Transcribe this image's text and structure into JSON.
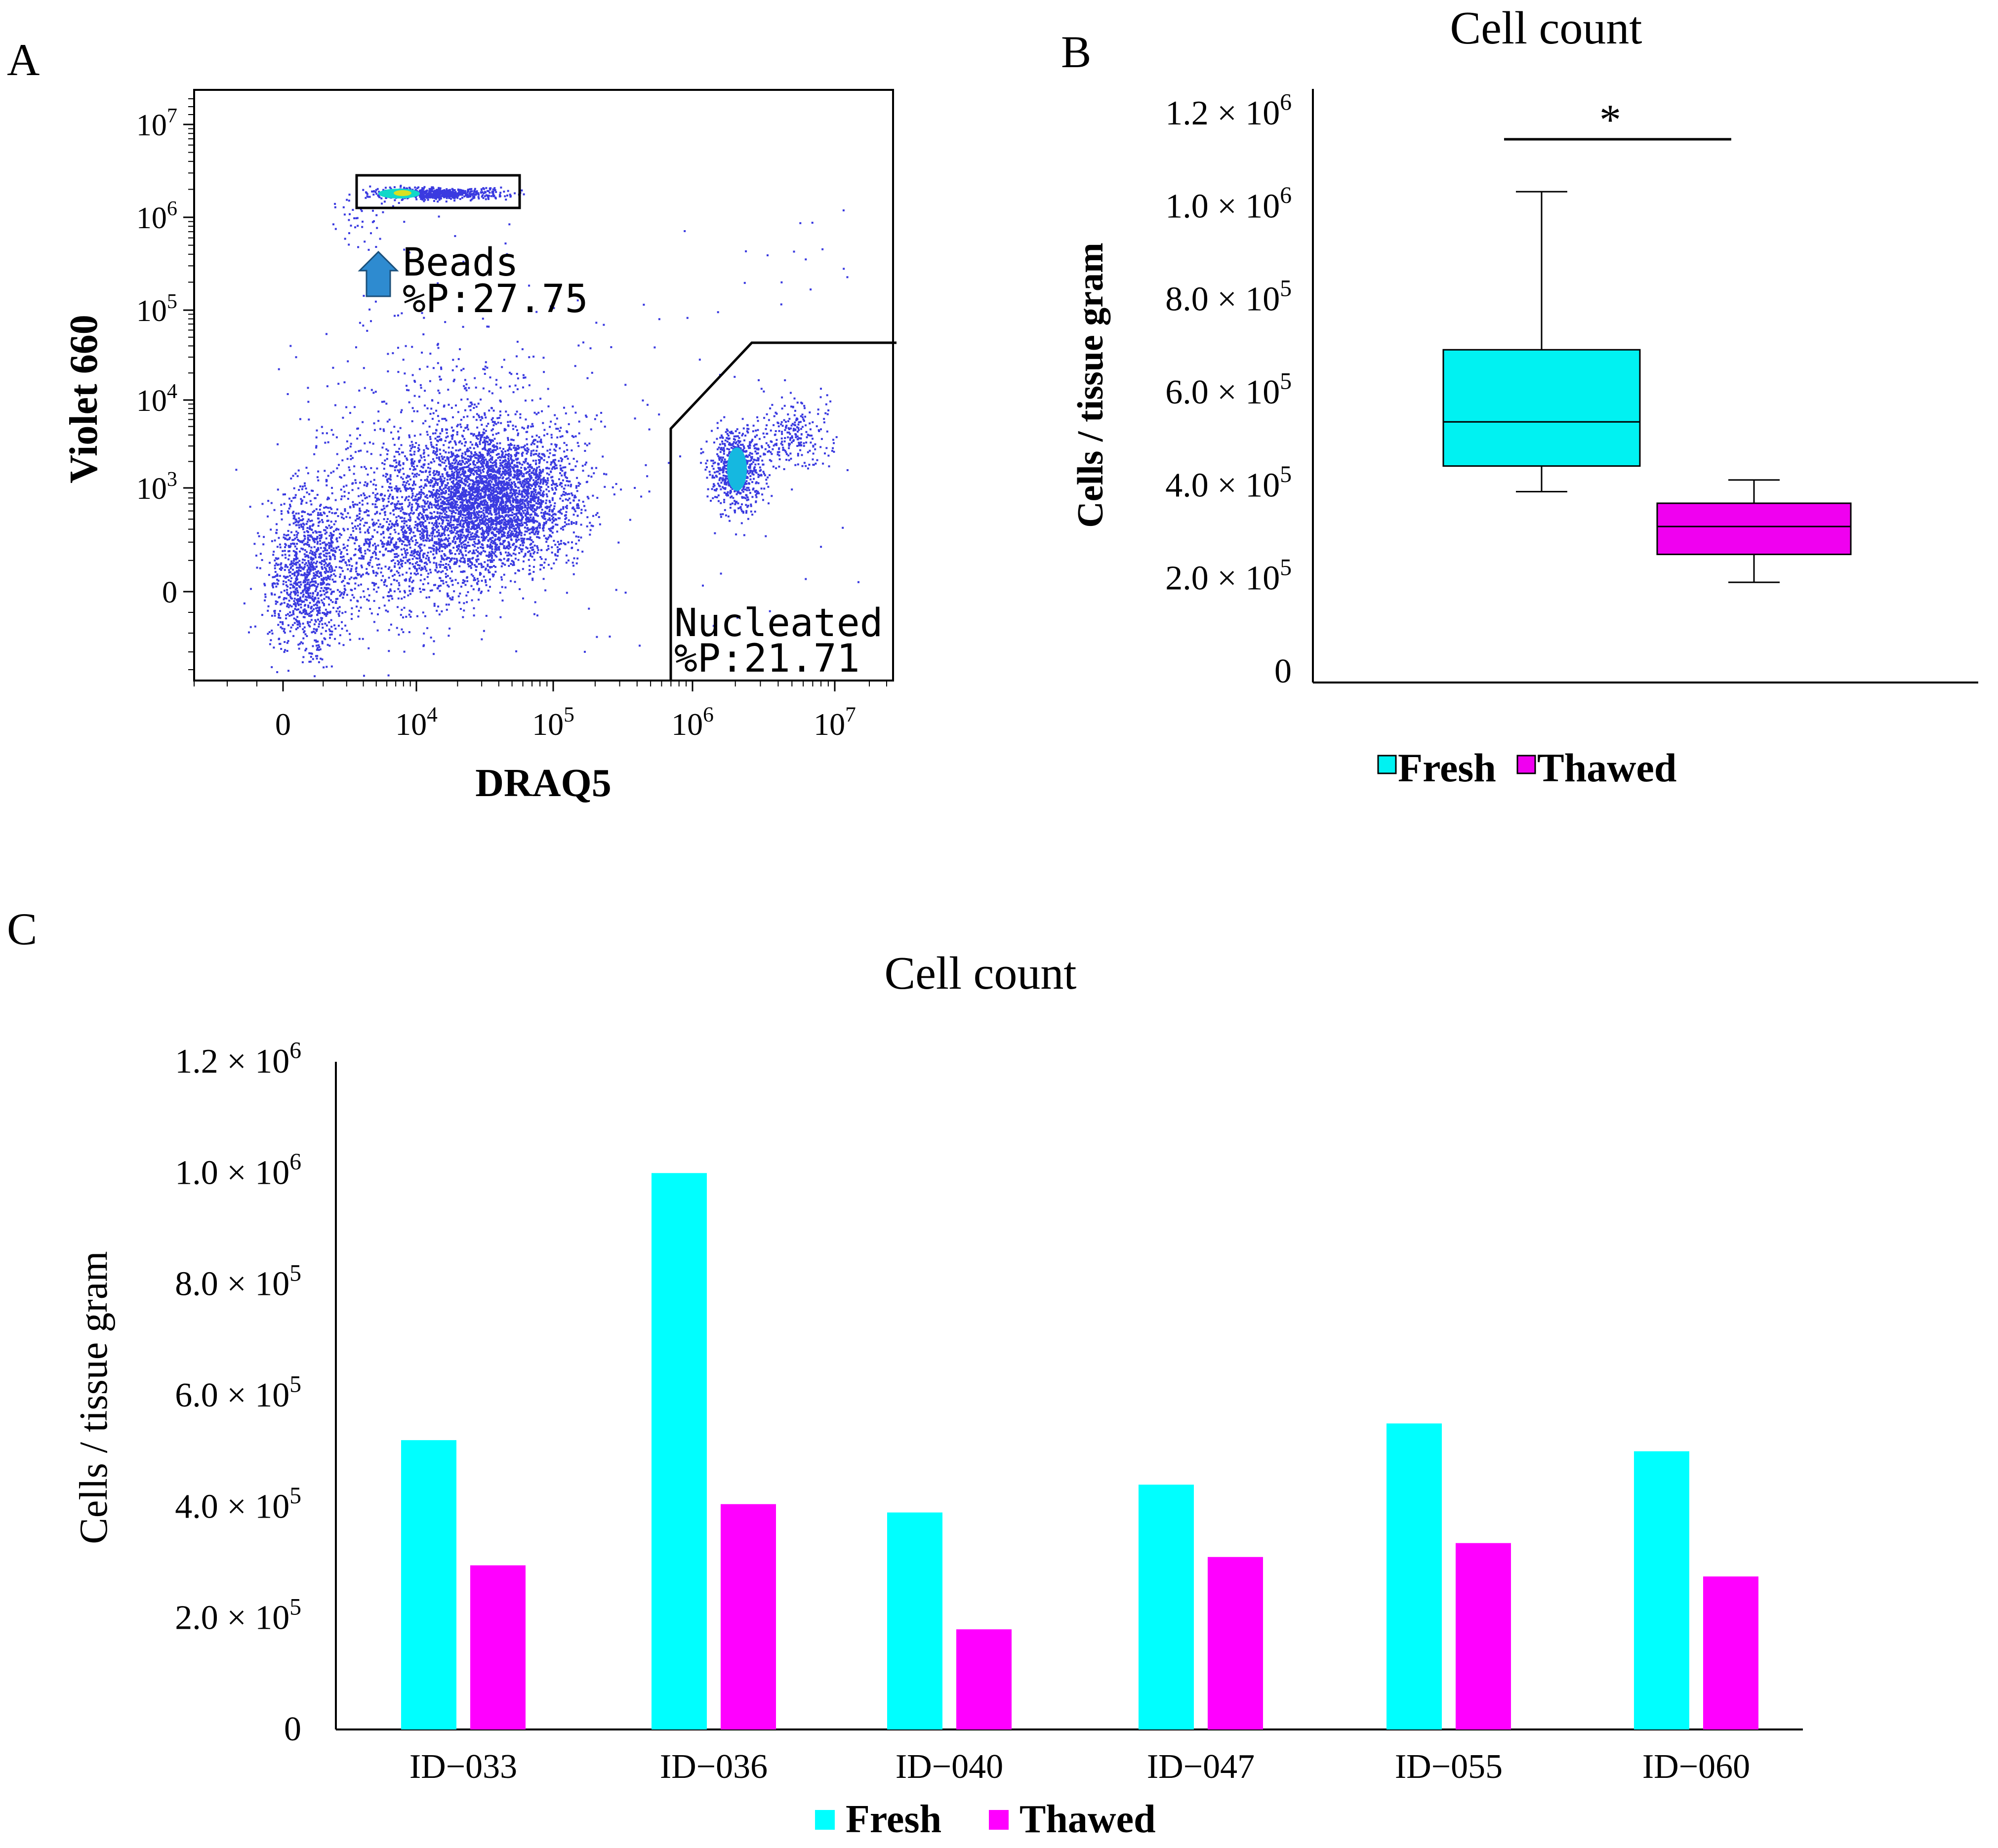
{
  "panel_labels": {
    "a": "A",
    "b": "B",
    "c": "C"
  },
  "colors": {
    "fresh": "#00FFFF",
    "fresh_box": "#00F2F2",
    "thawed": "#FF00FF",
    "thawed_box": "#F000F0",
    "dots": "#3A3AE0",
    "arrow": "#2E8BD0"
  },
  "chart_data": [
    {
      "type": "scatter",
      "panel": "A",
      "title": "",
      "xlabel": "DRAQ5",
      "ylabel": "Violet 660",
      "x_scale": "biexponential",
      "y_scale": "biexponential",
      "x_ticks": [
        {
          "value": 0,
          "base": "0",
          "exp": ""
        },
        {
          "value": 10000,
          "base": "10",
          "exp": "4"
        },
        {
          "value": 100000,
          "base": "10",
          "exp": "5"
        },
        {
          "value": 1000000,
          "base": "10",
          "exp": "6"
        },
        {
          "value": 10000000,
          "base": "10",
          "exp": "7"
        }
      ],
      "y_ticks": [
        {
          "value": 0,
          "base": "0",
          "exp": ""
        },
        {
          "value": 1000,
          "base": "10",
          "exp": "3"
        },
        {
          "value": 10000,
          "base": "10",
          "exp": "4"
        },
        {
          "value": 100000,
          "base": "10",
          "exp": "5"
        },
        {
          "value": 1000000,
          "base": "10",
          "exp": "6"
        },
        {
          "value": 10000000,
          "base": "10",
          "exp": "7"
        }
      ],
      "gates": [
        {
          "name": "Beads",
          "percent_label": "%P:27.75",
          "percent": 27.75
        },
        {
          "name": "Nucleated",
          "percent_label": "%P:21.71",
          "percent": 21.71
        }
      ]
    },
    {
      "type": "box",
      "panel": "B",
      "title": "Cell count",
      "xlabel": "",
      "ylabel": "Cells / tissue gram",
      "ylim": [
        0,
        1200000
      ],
      "y_ticks": [
        {
          "value": 0,
          "mant": "0",
          "exp": ""
        },
        {
          "value": 200000,
          "mant": "2.0 × 10",
          "exp": "5"
        },
        {
          "value": 400000,
          "mant": "4.0 × 10",
          "exp": "5"
        },
        {
          "value": 600000,
          "mant": "6.0 × 10",
          "exp": "5"
        },
        {
          "value": 800000,
          "mant": "8.0 × 10",
          "exp": "5"
        },
        {
          "value": 1000000,
          "mant": "1.0 × 10",
          "exp": "6"
        },
        {
          "value": 1200000,
          "mant": "1.2 × 10",
          "exp": "6"
        }
      ],
      "series": [
        {
          "name": "Fresh",
          "min": 385000,
          "q1": 440000,
          "median": 535000,
          "q3": 690000,
          "max": 1030000
        },
        {
          "name": "Thawed",
          "min": 190000,
          "q1": 250000,
          "median": 310000,
          "q3": 360000,
          "max": 410000
        }
      ],
      "significance": "*",
      "legend": [
        "Fresh",
        "Thawed"
      ],
      "legend_position": "bottom"
    },
    {
      "type": "bar",
      "panel": "C",
      "title": "Cell count",
      "xlabel": "",
      "ylabel": "Cells / tissue gram",
      "ylim": [
        0,
        1200000
      ],
      "y_ticks": [
        {
          "value": 0,
          "mant": "0",
          "exp": ""
        },
        {
          "value": 200000,
          "mant": "2.0 × 10",
          "exp": "5"
        },
        {
          "value": 400000,
          "mant": "4.0 × 10",
          "exp": "5"
        },
        {
          "value": 600000,
          "mant": "6.0 × 10",
          "exp": "5"
        },
        {
          "value": 800000,
          "mant": "8.0 × 10",
          "exp": "5"
        },
        {
          "value": 1000000,
          "mant": "1.0 × 10",
          "exp": "6"
        },
        {
          "value": 1200000,
          "mant": "1.2 × 10",
          "exp": "6"
        }
      ],
      "categories": [
        "ID−033",
        "ID−036",
        "ID−040",
        "ID−047",
        "ID−055",
        "ID−060"
      ],
      "series": [
        {
          "name": "Fresh",
          "values": [
            520000,
            1000000,
            390000,
            440000,
            550000,
            500000
          ]
        },
        {
          "name": "Thawed",
          "values": [
            295000,
            405000,
            180000,
            310000,
            335000,
            275000
          ]
        }
      ],
      "legend": [
        "Fresh",
        "Thawed"
      ],
      "legend_position": "bottom"
    }
  ]
}
